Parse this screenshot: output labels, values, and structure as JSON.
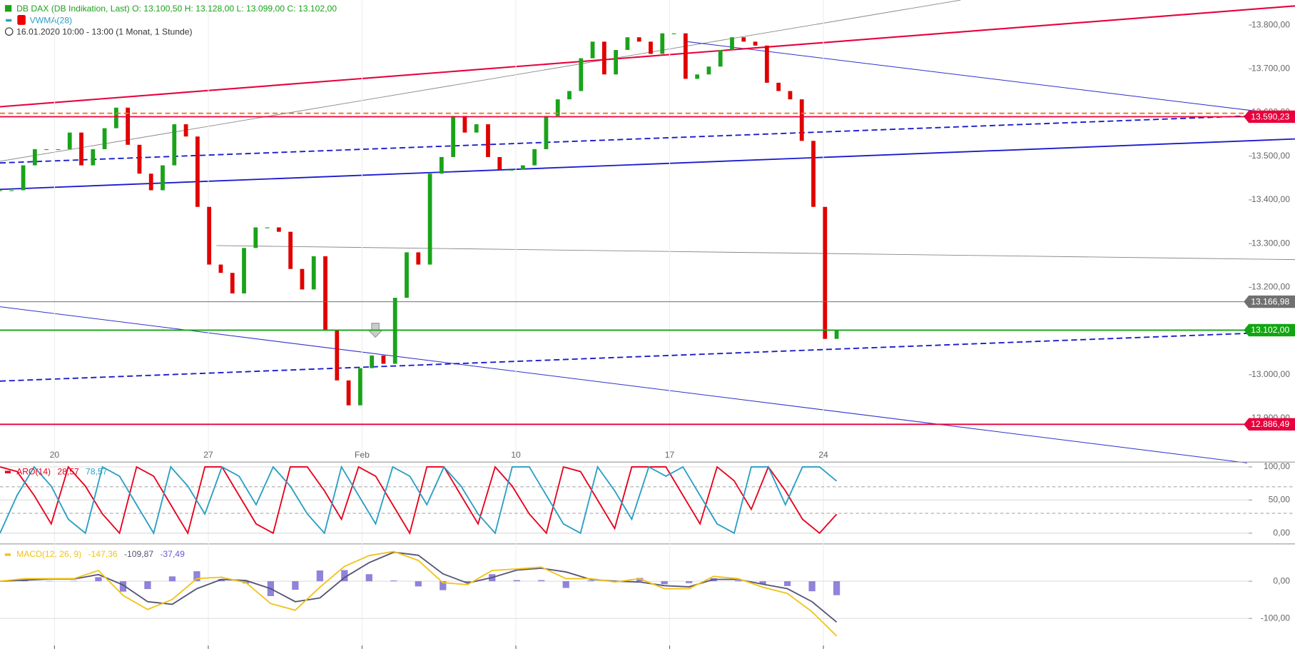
{
  "header": {
    "quote": "DB DAX (DB Indikation, Last)  O: 13.100,50  H: 13.128,00  L: 13.099,00  C: 13.102,00",
    "indicator": "VWMA(28)",
    "period": "16.01.2020 10:00 - 13:00   (1 Monat, 1 Stunde)"
  },
  "chart_data": [
    {
      "type": "candle",
      "up_color": "#1aa31a",
      "down_color": "#e00000",
      "values": [
        13422,
        13422,
        13479,
        13516,
        13516,
        13516,
        13554,
        13479,
        13516,
        13564,
        13611,
        13526,
        13460,
        13422,
        13479,
        13573,
        13545,
        13384,
        13252,
        13233,
        13186,
        13290,
        13337,
        13337,
        13327,
        13242,
        13195,
        13271,
        13101,
        12987,
        12930,
        13015,
        13044,
        13025,
        13176,
        13280,
        13252,
        13460,
        13498,
        13592,
        13554,
        13573,
        13498,
        13469,
        13469,
        13479,
        13516,
        13592,
        13630,
        13649,
        13724,
        13762,
        13687,
        13743,
        13772,
        13762,
        13734,
        13781,
        13781,
        13677,
        13687,
        13705,
        13743,
        13772,
        13762,
        13753,
        13668,
        13649,
        13630,
        13535,
        13384,
        13082,
        13102
      ],
      "ylim": [
        12836,
        13857
      ],
      "yticks": [
        {
          "value": 12900,
          "label": "12.900,00"
        },
        {
          "value": 13000,
          "label": "13.000,00"
        },
        {
          "value": 13100,
          "label": "13.100,00"
        },
        {
          "value": 13200,
          "label": "13.200,00"
        },
        {
          "value": 13300,
          "label": "13.300,00"
        },
        {
          "value": 13400,
          "label": "13.400,00"
        },
        {
          "value": 13500,
          "label": "13.500,00"
        },
        {
          "value": 13600,
          "label": "13.600,00"
        },
        {
          "value": 13700,
          "label": "13.700,00"
        },
        {
          "value": 13800,
          "label": "13.800,00"
        }
      ],
      "x_labels": [
        "20",
        "27",
        "Feb",
        "10",
        "17",
        "24"
      ],
      "levels": [
        {
          "value": 13598,
          "color": "#e87722",
          "dashed": true
        },
        {
          "value": 13590.23,
          "label": "13.590,23",
          "color": "#e8003c"
        },
        {
          "value": 13166.98,
          "label": "13.166,98",
          "color": "#707070"
        },
        {
          "value": 13102,
          "label": "13.102,00",
          "color": "#12a512"
        },
        {
          "value": 12886.49,
          "label": "12.886,49",
          "color": "#e8003c"
        }
      ]
    },
    {
      "type": "line",
      "title": "ARO(14)",
      "series": [
        {
          "color": "#e8001c",
          "legend_value": "28,57",
          "values": [
            100,
            93,
            57,
            14,
            100,
            71,
            29,
            0,
            100,
            86,
            43,
            0,
            100,
            100,
            57,
            14,
            0,
            100,
            100,
            64,
            21,
            100,
            86,
            43,
            0,
            100,
            100,
            57,
            14,
            100,
            71,
            29,
            0,
            100,
            93,
            50,
            7,
            100,
            100,
            100,
            57,
            14,
            100,
            79,
            36,
            100,
            64,
            21,
            0,
            28.57
          ]
        },
        {
          "color": "#2a9fc4",
          "legend_value": "78,57",
          "values": [
            0,
            57,
            100,
            71,
            21,
            0,
            100,
            86,
            43,
            0,
            100,
            71,
            29,
            100,
            86,
            43,
            100,
            71,
            29,
            0,
            100,
            57,
            14,
            100,
            86,
            43,
            100,
            71,
            29,
            0,
            100,
            100,
            57,
            14,
            0,
            100,
            64,
            21,
            100,
            86,
            100,
            57,
            14,
            0,
            100,
            100,
            43,
            100,
            100,
            78.57
          ]
        }
      ],
      "ylim": [
        -15,
        106
      ],
      "yticks": [
        {
          "value": 0,
          "label": "0,00"
        },
        {
          "value": 50,
          "label": "50,00"
        },
        {
          "value": 100,
          "label": "100,00"
        }
      ],
      "reference_lines": [
        30,
        70
      ]
    },
    {
      "type": "macd",
      "title": "MACD(12, 26, 9)",
      "series": [
        {
          "color": "#f0c419",
          "legend_value": "-147,36",
          "values": [
            0,
            7,
            7,
            7,
            29,
            -38,
            -76,
            -49,
            7,
            11,
            -4,
            -60,
            -78,
            -16,
            40,
            69,
            80,
            56,
            -4,
            -9,
            29,
            33,
            38,
            7,
            7,
            -2,
            7,
            -20,
            -20,
            13,
            7,
            -16,
            -33,
            -82,
            -147.36
          ]
        },
        {
          "color": "#555577",
          "legend_value": "-109,87",
          "values": [
            0,
            3,
            6,
            6,
            18,
            -10,
            -55,
            -62,
            -20,
            5,
            2,
            -20,
            -55,
            -45,
            10,
            50,
            78,
            70,
            20,
            -5,
            10,
            30,
            35,
            25,
            5,
            0,
            -2,
            -12,
            -15,
            5,
            5,
            -8,
            -20,
            -55,
            -109.87
          ]
        },
        {
          "color": "#6a5acd",
          "legend_value": "-37,49",
          "values": [
            0,
            4,
            1,
            1,
            11,
            -28,
            -21,
            13,
            27,
            6,
            -6,
            -40,
            -23,
            29,
            30,
            19,
            2,
            -14,
            -24,
            -4,
            19,
            3,
            3,
            -18,
            2,
            -2,
            9,
            -8,
            -5,
            8,
            2,
            -8,
            -13,
            -27,
            -37.49
          ]
        }
      ],
      "ylim": [
        -182,
        96
      ],
      "yticks": [
        {
          "value": -100,
          "label": "-100,00"
        },
        {
          "value": 0,
          "label": "0,00"
        }
      ]
    }
  ]
}
